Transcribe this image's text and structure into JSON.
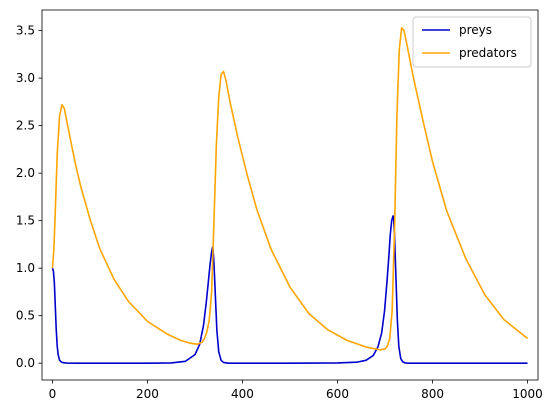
{
  "chart_data": {
    "type": "line",
    "title": "",
    "xlabel": "",
    "ylabel": "",
    "xlim": [
      -22,
      1022
    ],
    "ylim": [
      -0.177,
      3.717
    ],
    "xticks": [
      {
        "value": 0,
        "label": "0"
      },
      {
        "value": 200,
        "label": "200"
      },
      {
        "value": 400,
        "label": "400"
      },
      {
        "value": 600,
        "label": "600"
      },
      {
        "value": 800,
        "label": "800"
      },
      {
        "value": 1000,
        "label": "1000"
      }
    ],
    "yticks": [
      {
        "value": 0.0,
        "label": "0.0"
      },
      {
        "value": 0.5,
        "label": "0.5"
      },
      {
        "value": 1.0,
        "label": "1.0"
      },
      {
        "value": 1.5,
        "label": "1.5"
      },
      {
        "value": 2.0,
        "label": "2.0"
      },
      {
        "value": 2.5,
        "label": "2.5"
      },
      {
        "value": 3.0,
        "label": "3.0"
      },
      {
        "value": 3.5,
        "label": "3.5"
      }
    ],
    "grid": false,
    "legend": "top-right",
    "series": [
      {
        "name": "preys",
        "color": "#0000cc",
        "x": [
          0,
          2,
          4,
          6,
          8,
          10,
          12,
          15,
          20,
          30,
          50,
          100,
          200,
          250,
          280,
          300,
          310,
          318,
          324,
          328,
          332,
          335,
          337,
          338,
          340,
          343,
          346,
          350,
          355,
          360,
          370,
          400,
          500,
          600,
          640,
          660,
          675,
          685,
          693,
          699,
          704,
          708,
          711,
          714,
          717,
          718,
          720,
          723,
          726,
          729,
          733,
          737,
          742,
          750,
          780,
          850,
          1000
        ],
        "y": [
          1.0,
          0.97,
          0.85,
          0.6,
          0.35,
          0.18,
          0.09,
          0.03,
          0.008,
          0.001,
          0.0,
          0.0,
          0.0,
          0.003,
          0.02,
          0.09,
          0.2,
          0.4,
          0.65,
          0.85,
          1.05,
          1.17,
          1.22,
          1.2,
          1.05,
          0.7,
          0.35,
          0.12,
          0.03,
          0.008,
          0.0,
          0.0,
          0.0,
          0.003,
          0.01,
          0.03,
          0.08,
          0.17,
          0.32,
          0.55,
          0.85,
          1.12,
          1.35,
          1.5,
          1.55,
          1.53,
          1.35,
          0.9,
          0.45,
          0.18,
          0.05,
          0.015,
          0.003,
          0.0,
          0.0,
          0.0,
          0.0
        ]
      },
      {
        "name": "predators",
        "color": "#ffa500",
        "x": [
          0,
          3,
          6,
          10,
          15,
          20,
          25,
          30,
          40,
          50,
          60,
          80,
          100,
          130,
          160,
          200,
          240,
          270,
          290,
          305,
          315,
          320,
          325,
          330,
          335,
          340,
          345,
          350,
          355,
          360,
          365,
          375,
          390,
          410,
          430,
          460,
          500,
          540,
          580,
          620,
          660,
          680,
          690,
          700,
          705,
          710,
          715,
          720,
          725,
          730,
          735,
          740,
          745,
          760,
          780,
          800,
          830,
          870,
          910,
          950,
          1000
        ],
        "y": [
          1.0,
          1.2,
          1.6,
          2.2,
          2.6,
          2.72,
          2.68,
          2.55,
          2.3,
          2.06,
          1.85,
          1.5,
          1.2,
          0.88,
          0.65,
          0.44,
          0.31,
          0.24,
          0.21,
          0.2,
          0.22,
          0.26,
          0.33,
          0.45,
          0.75,
          1.5,
          2.3,
          2.8,
          3.04,
          3.07,
          2.98,
          2.72,
          2.38,
          1.98,
          1.62,
          1.2,
          0.8,
          0.52,
          0.35,
          0.24,
          0.17,
          0.15,
          0.14,
          0.15,
          0.18,
          0.26,
          0.55,
          1.4,
          2.6,
          3.3,
          3.53,
          3.5,
          3.38,
          3.0,
          2.55,
          2.12,
          1.6,
          1.1,
          0.72,
          0.46,
          0.26
        ]
      }
    ]
  }
}
